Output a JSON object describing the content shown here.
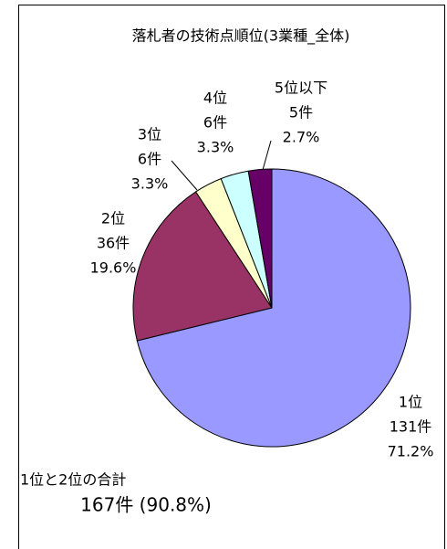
{
  "chart_data": {
    "type": "pie",
    "title": "落札者の技術点順位(3業種_全体)",
    "categories": [
      "1位",
      "2位",
      "3位",
      "4位",
      "5位以下"
    ],
    "values": [
      131,
      36,
      6,
      6,
      5
    ],
    "value_labels": [
      "131件",
      "36件",
      "6件",
      "6件",
      "5件"
    ],
    "shares": [
      71.2,
      19.6,
      3.3,
      3.3,
      2.7
    ],
    "share_labels": [
      "71.2%",
      "19.6%",
      "3.3%",
      "3.3%",
      "2.7%"
    ],
    "colors": [
      "#9999ff",
      "#993366",
      "#ffffcc",
      "#ccffff",
      "#660066"
    ],
    "annotations": [
      "1位と2位の合計",
      "167件 (90.8%)"
    ]
  }
}
